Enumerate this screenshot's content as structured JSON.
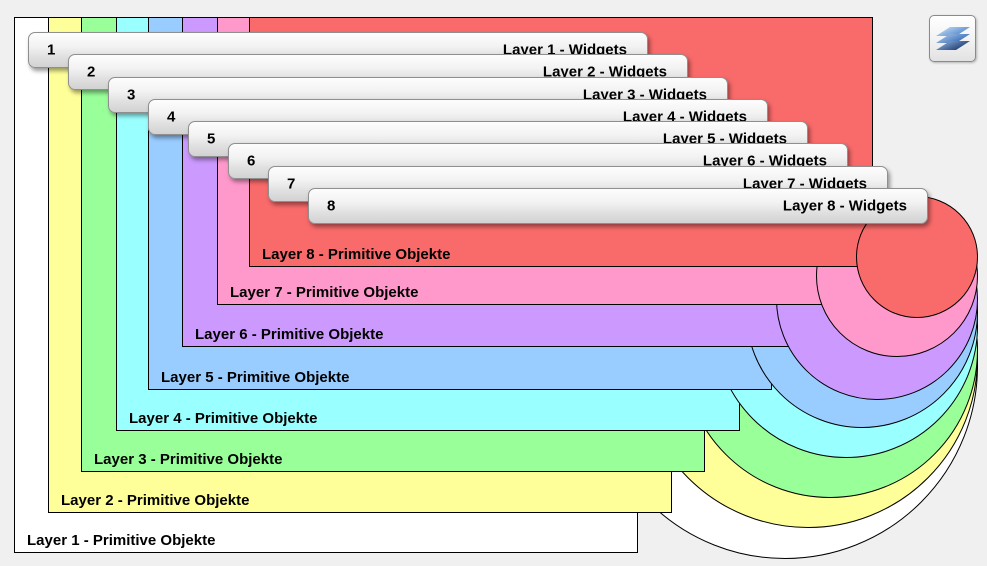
{
  "stage": {
    "background": "#f0f0f0",
    "outline_color": "#000000"
  },
  "layers": [
    {
      "number": "1",
      "color": "#ffffff",
      "widgets_label": "Layer 1 - Widgets",
      "primitives_label": "Layer 1 - Primitive Objekte"
    },
    {
      "number": "2",
      "color": "#ffff99",
      "widgets_label": "Layer 2 - Widgets",
      "primitives_label": "Layer 2 - Primitive Objekte"
    },
    {
      "number": "3",
      "color": "#99ff99",
      "widgets_label": "Layer 3 - Widgets",
      "primitives_label": "Layer 3 - Primitive Objekte"
    },
    {
      "number": "4",
      "color": "#99ffff",
      "widgets_label": "Layer 4 - Widgets",
      "primitives_label": "Layer 4 - Primitive Objekte"
    },
    {
      "number": "5",
      "color": "#99ccff",
      "widgets_label": "Layer 5 - Widgets",
      "primitives_label": "Layer 5 - Primitive Objekte"
    },
    {
      "number": "6",
      "color": "#cc99ff",
      "widgets_label": "Layer 6 - Widgets",
      "primitives_label": "Layer 6 - Primitive Objekte"
    },
    {
      "number": "7",
      "color": "#ff99cc",
      "widgets_label": "Layer 7 - Widgets",
      "primitives_label": "Layer 7 - Primitive Objekte"
    },
    {
      "number": "8",
      "color": "#f96a6a",
      "widgets_label": "Layer 8 - Widgets",
      "primitives_label": "Layer 8 - Primitive Objekte"
    }
  ],
  "layers_button": {
    "icon": "layers-icon",
    "icon_sheet_gradients": [
      [
        "#d6e6f8",
        "#4a86cc"
      ],
      [
        "#b9d3f0",
        "#2f67b5"
      ],
      [
        "#9dbfe6",
        "#17356e"
      ]
    ]
  }
}
